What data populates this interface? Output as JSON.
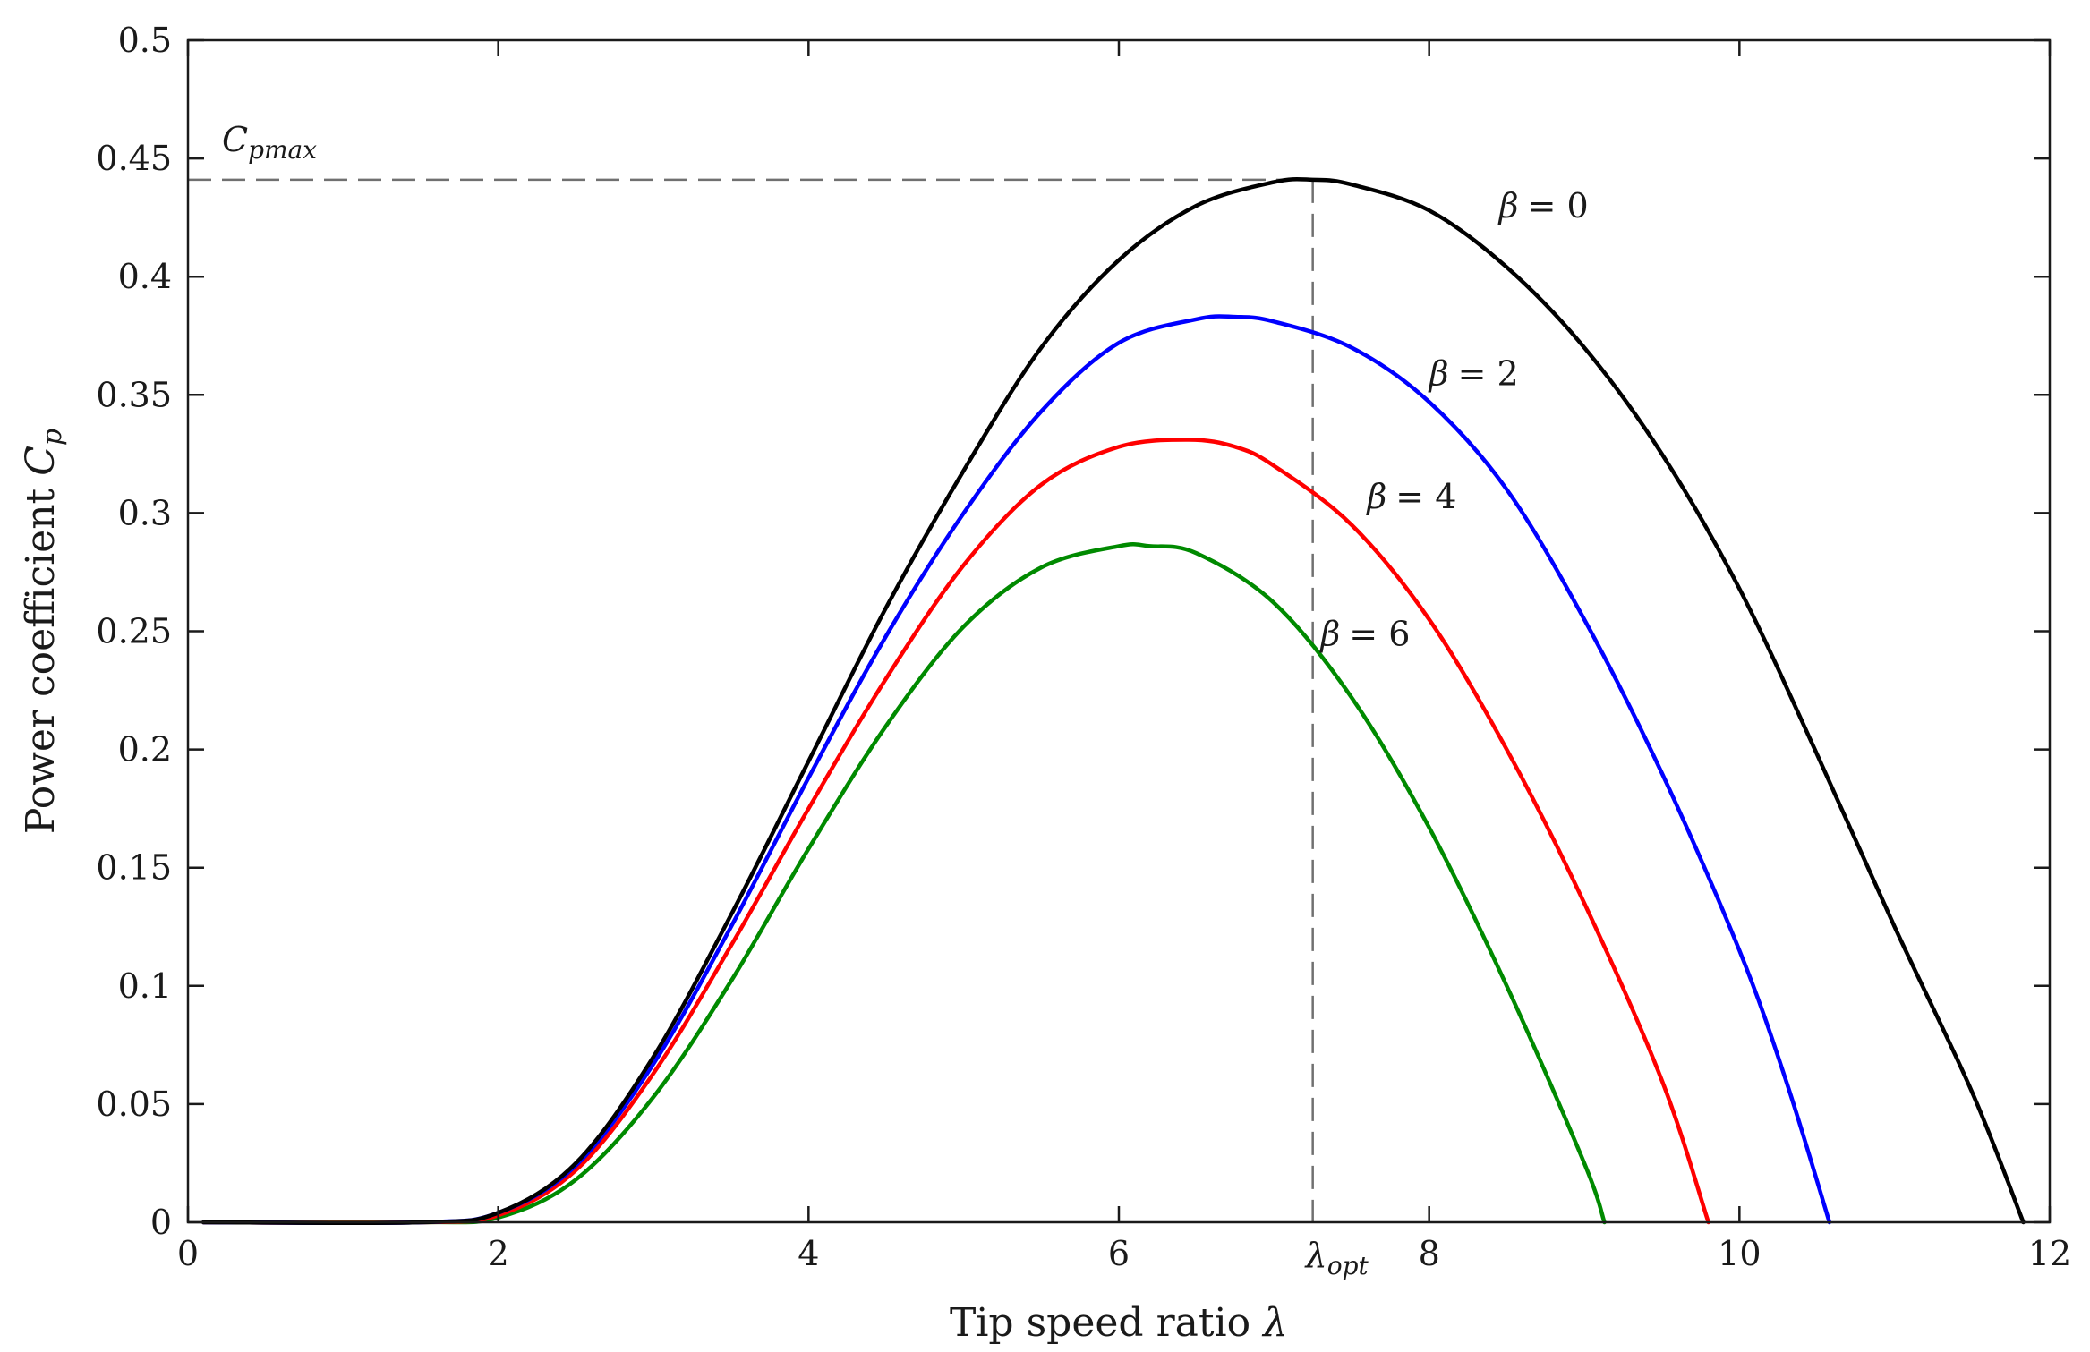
{
  "chart_data": {
    "type": "line",
    "title": "",
    "xlabel": "Tip speed ratio",
    "xlabel_symbol": "λ",
    "ylabel": "Power coefficient",
    "ylabel_symbol": "C",
    "ylabel_sub": "p",
    "xlim": [
      0,
      12
    ],
    "ylim": [
      0,
      0.5
    ],
    "xticks": [
      0,
      2,
      4,
      6,
      8,
      10,
      12
    ],
    "xtick_labels": [
      "0",
      "2",
      "4",
      "6",
      "8",
      "10",
      "12"
    ],
    "yticks": [
      0,
      0.05,
      0.1,
      0.15,
      0.2,
      0.25,
      0.3,
      0.35,
      0.4,
      0.45,
      0.5
    ],
    "ytick_labels": [
      "0",
      "0.05",
      "0.1",
      "0.15",
      "0.2",
      "0.25",
      "0.3",
      "0.35",
      "0.4",
      "0.45",
      "0.5"
    ],
    "grid": false,
    "colors": {
      "beta0": "#000000",
      "beta2": "#0000ff",
      "beta4": "#ff0000",
      "beta6": "#008a00",
      "reference": "#707070"
    },
    "series": [
      {
        "name": "β = 0",
        "label_symbol": "β",
        "label_value": "= 0",
        "color": "#000000",
        "x": [
          0.1,
          1.5,
          2.0,
          2.5,
          3.0,
          3.5,
          4.0,
          4.5,
          5.0,
          5.5,
          6.0,
          6.5,
          7.0,
          7.25,
          7.5,
          8.0,
          8.5,
          9.0,
          9.5,
          10.0,
          10.5,
          11.0,
          11.5,
          11.83
        ],
        "y": [
          0,
          0,
          0.004,
          0.025,
          0.07,
          0.13,
          0.195,
          0.26,
          0.318,
          0.37,
          0.407,
          0.43,
          0.44,
          0.441,
          0.439,
          0.428,
          0.404,
          0.37,
          0.325,
          0.268,
          0.198,
          0.125,
          0.055,
          0
        ]
      },
      {
        "name": "β = 2",
        "label_symbol": "β",
        "label_value": "= 2",
        "color": "#0000ff",
        "x": [
          0.1,
          1.5,
          2.0,
          2.5,
          3.0,
          3.5,
          4.0,
          4.5,
          5.0,
          5.5,
          6.0,
          6.5,
          6.75,
          7.0,
          7.5,
          8.0,
          8.5,
          9.0,
          9.5,
          10.0,
          10.3,
          10.58
        ],
        "y": [
          0,
          0,
          0.004,
          0.024,
          0.067,
          0.125,
          0.188,
          0.248,
          0.3,
          0.343,
          0.372,
          0.382,
          0.383,
          0.381,
          0.37,
          0.347,
          0.31,
          0.255,
          0.19,
          0.115,
          0.06,
          0
        ]
      },
      {
        "name": "β = 4",
        "label_symbol": "β",
        "label_value": "= 4",
        "color": "#ff0000",
        "x": [
          0.1,
          1.5,
          2.0,
          2.5,
          3.0,
          3.5,
          4.0,
          4.5,
          5.0,
          5.5,
          6.0,
          6.45,
          6.75,
          7.0,
          7.5,
          8.0,
          8.5,
          9.0,
          9.5,
          9.8
        ],
        "y": [
          0,
          0,
          0.003,
          0.022,
          0.063,
          0.117,
          0.175,
          0.23,
          0.278,
          0.312,
          0.328,
          0.331,
          0.328,
          0.32,
          0.295,
          0.255,
          0.2,
          0.135,
          0.06,
          0
        ]
      },
      {
        "name": "β = 6",
        "label_symbol": "β",
        "label_value": "= 6",
        "color": "#008a00",
        "x": [
          0.1,
          1.5,
          2.0,
          2.5,
          3.0,
          3.5,
          4.0,
          4.5,
          5.0,
          5.5,
          6.0,
          6.2,
          6.5,
          7.0,
          7.5,
          8.0,
          8.5,
          9.0,
          9.13
        ],
        "y": [
          0,
          0,
          0.002,
          0.018,
          0.053,
          0.102,
          0.158,
          0.21,
          0.252,
          0.277,
          0.286,
          0.286,
          0.283,
          0.262,
          0.222,
          0.167,
          0.1,
          0.025,
          0
        ]
      }
    ],
    "reference_lines": {
      "lambda_opt": 7.25,
      "cp_max": 0.441
    },
    "annotations": {
      "cpmax_symbol": "C",
      "cpmax_sub": "pmax",
      "lopt_symbol": "λ",
      "lopt_sub": "opt"
    },
    "label_anchor_points": [
      {
        "x": 8.45,
        "y": 0.425
      },
      {
        "x": 8.0,
        "y": 0.354
      },
      {
        "x": 7.6,
        "y": 0.302
      },
      {
        "x": 7.3,
        "y": 0.244
      }
    ]
  }
}
